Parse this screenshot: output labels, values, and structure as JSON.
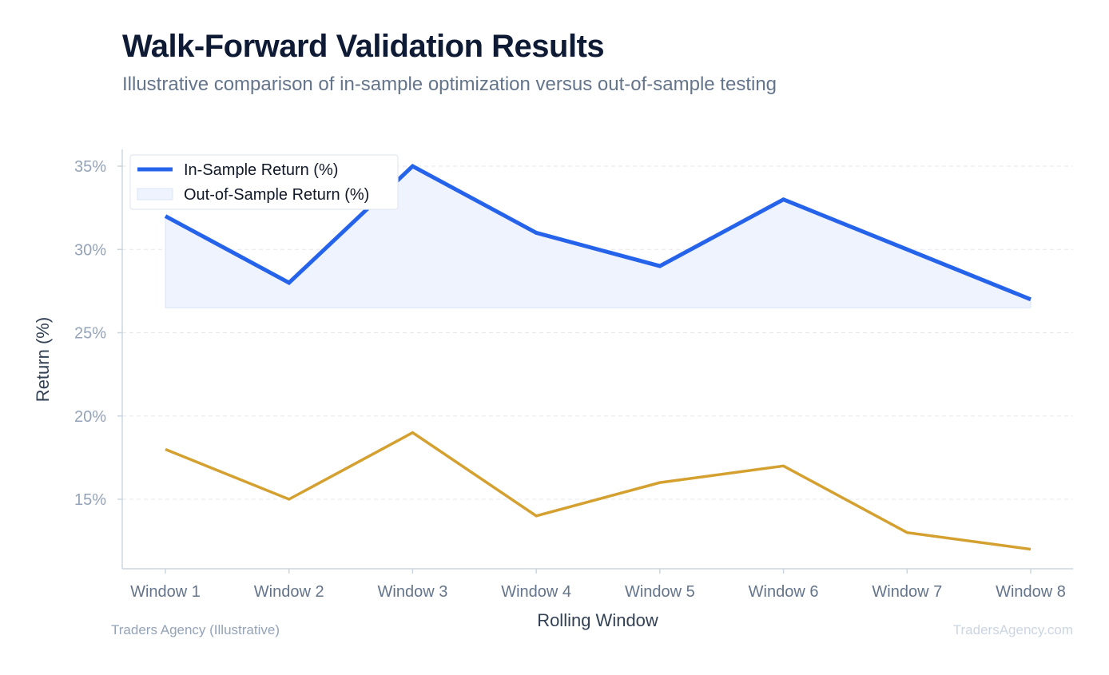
{
  "title": "Walk-Forward Validation Results",
  "subtitle": "Illustrative comparison of in-sample optimization versus out-of-sample testing",
  "footer": {
    "source": "Traders Agency (Illustrative)",
    "brand": "TradersAgency.com"
  },
  "colors": {
    "in_sample": "#2563eb",
    "in_sample_fill": "#eef3fd",
    "out_of_sample": "#d4a030",
    "grid": "#e5e7eb",
    "axis": "#cbd5e1",
    "tick": "#94a3b8",
    "xtick": "#64748b",
    "label": "#334155"
  },
  "chart_data": {
    "type": "line",
    "xlabel": "Rolling Window",
    "ylabel": "Return (%)",
    "categories": [
      "Window 1",
      "Window 2",
      "Window 3",
      "Window 4",
      "Window 5",
      "Window 6",
      "Window 7",
      "Window 8"
    ],
    "ylim": [
      11.5,
      35.5
    ],
    "yticks": [
      15,
      20,
      25,
      30,
      35
    ],
    "ytick_labels": [
      "15%",
      "20%",
      "25%",
      "30%",
      "35%"
    ],
    "fill_baseline": 26.5,
    "grid": true,
    "legend_position": "top-left",
    "legend": [
      "In-Sample Return (%)",
      "Out-of-Sample Return (%)"
    ],
    "series": [
      {
        "name": "In-Sample Return (%)",
        "values": [
          32,
          28,
          35,
          31,
          29,
          33,
          30,
          27
        ]
      },
      {
        "name": "Out-of-Sample Return (%)",
        "values": [
          18,
          15,
          19,
          14,
          16,
          17,
          13,
          12
        ]
      }
    ]
  }
}
